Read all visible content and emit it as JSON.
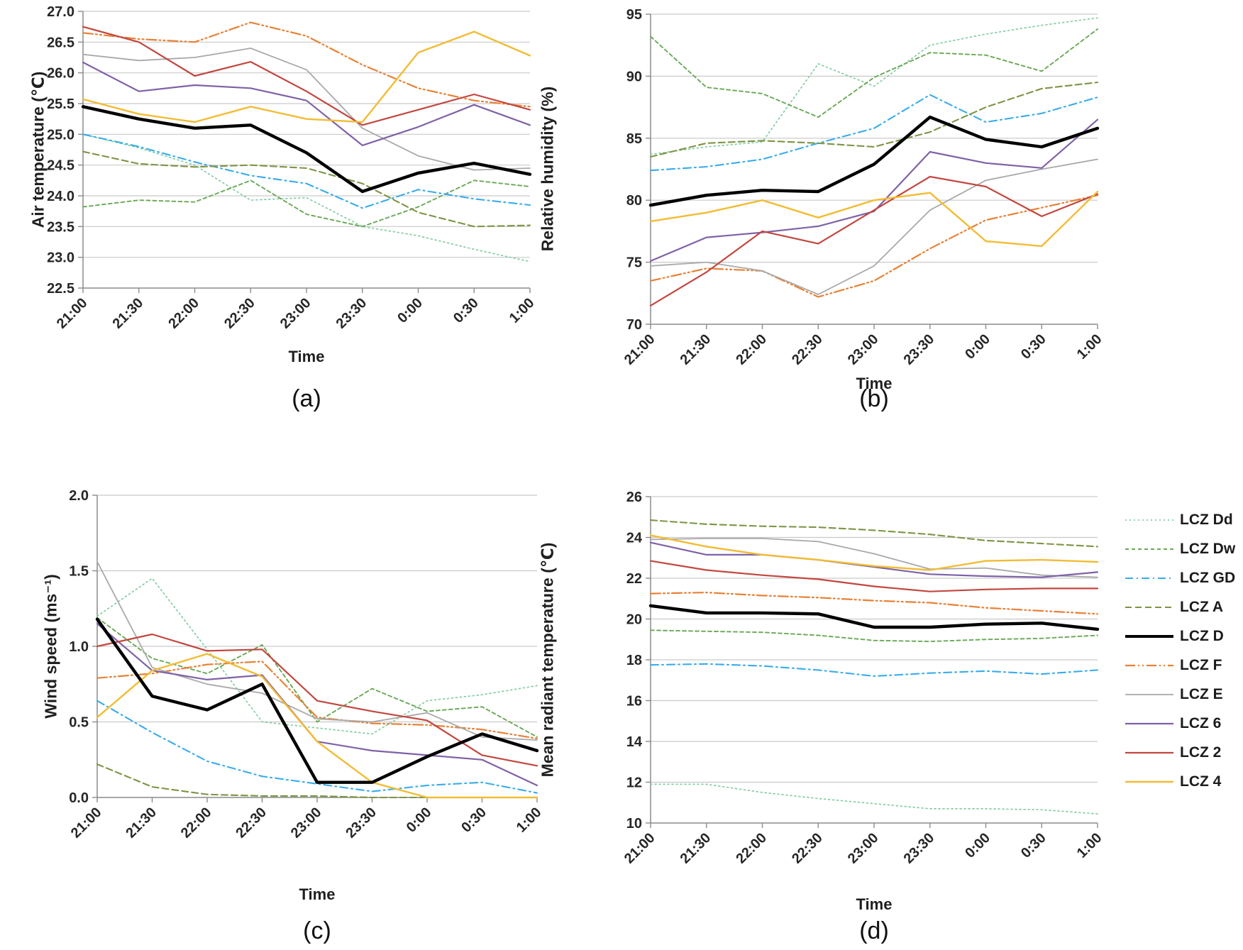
{
  "figure_type": "four-panel line chart figure, Local Climate Zone (LCZ) night measurements",
  "legend": {
    "position": "right of panel d",
    "entries": [
      {
        "key": "Dd",
        "label": "LCZ Dd",
        "color": "#84cda4",
        "dash": "2 4",
        "width": 1.7
      },
      {
        "key": "Dw",
        "label": "LCZ Dw",
        "color": "#69a855",
        "dash": "5 4",
        "width": 1.9
      },
      {
        "key": "GD",
        "label": "LCZ GD",
        "color": "#38acec",
        "dash": "11 5 2 5",
        "width": 2.1
      },
      {
        "key": "A",
        "label": "LCZ A",
        "color": "#7e9444",
        "dash": "9 5",
        "width": 2.1
      },
      {
        "key": "D",
        "label": "LCZ D",
        "color": "#000000",
        "dash": "",
        "width": 4.4
      },
      {
        "key": "F",
        "label": "LCZ F",
        "color": "#e88135",
        "dash": "14 4 2 4 2 4",
        "width": 2.2
      },
      {
        "key": "E",
        "label": "LCZ E",
        "color": "#a9a9a9",
        "dash": "",
        "width": 1.8
      },
      {
        "key": "6",
        "label": "LCZ 6",
        "color": "#7e62a7",
        "dash": "",
        "width": 2.2
      },
      {
        "key": "2",
        "label": "LCZ 2",
        "color": "#c2473f",
        "dash": "",
        "width": 2.2
      },
      {
        "key": "4",
        "label": "LCZ 4",
        "color": "#f2bc33",
        "dash": "",
        "width": 2.4
      }
    ]
  },
  "chart_data": [
    {
      "id": "a",
      "type": "line",
      "title": "(a)",
      "xlabel": "Time",
      "ylabel": "Air temperature (℃)",
      "ylim": [
        22.5,
        27.0
      ],
      "yticks": [
        27.0,
        26.5,
        26.0,
        25.5,
        25.0,
        24.5,
        24.0,
        23.5,
        23.0,
        22.5
      ],
      "ytick_labels": [
        "27.0",
        "26.5",
        "26.0",
        "25.5",
        "25.0",
        "24.5",
        "24.0",
        "23.5",
        "23.0",
        "22.5"
      ],
      "grid": "horizontal",
      "legend_position": "none",
      "x": [
        "21:00",
        "21:30",
        "22:00",
        "22:30",
        "23:00",
        "23:30",
        "0:00",
        "0:30",
        "1:00"
      ],
      "series": [
        {
          "key": "Dd",
          "name": "LCZ Dd",
          "values": [
            25.0,
            24.78,
            24.5,
            23.93,
            23.97,
            23.5,
            23.35,
            23.13,
            22.93
          ]
        },
        {
          "key": "Dw",
          "name": "LCZ Dw",
          "values": [
            23.82,
            23.93,
            23.9,
            24.25,
            23.7,
            23.5,
            23.82,
            24.25,
            24.15
          ]
        },
        {
          "key": "GD",
          "name": "LCZ GD",
          "values": [
            25.0,
            24.8,
            24.55,
            24.33,
            24.2,
            23.8,
            24.1,
            23.95,
            23.85
          ]
        },
        {
          "key": "A",
          "name": "LCZ A",
          "values": [
            24.72,
            24.52,
            24.47,
            24.5,
            24.45,
            24.2,
            23.73,
            23.5,
            23.52
          ]
        },
        {
          "key": "D",
          "name": "LCZ D",
          "values": [
            25.45,
            25.25,
            25.1,
            25.15,
            24.7,
            24.07,
            24.37,
            24.53,
            24.35
          ]
        },
        {
          "key": "F",
          "name": "LCZ F",
          "values": [
            26.65,
            26.55,
            26.5,
            26.82,
            26.6,
            26.13,
            25.75,
            25.55,
            25.45
          ]
        },
        {
          "key": "E",
          "name": "LCZ E",
          "values": [
            26.3,
            26.2,
            26.25,
            26.4,
            26.05,
            25.1,
            24.65,
            24.42,
            24.45
          ]
        },
        {
          "key": "6",
          "name": "LCZ 6",
          "values": [
            26.17,
            25.7,
            25.8,
            25.75,
            25.55,
            24.82,
            25.12,
            25.48,
            25.15
          ]
        },
        {
          "key": "2",
          "name": "LCZ 2",
          "values": [
            26.75,
            26.5,
            25.95,
            26.18,
            25.7,
            25.15,
            25.4,
            25.65,
            25.4
          ]
        },
        {
          "key": "4",
          "name": "LCZ 4",
          "values": [
            25.57,
            25.33,
            25.2,
            25.45,
            25.25,
            25.2,
            26.33,
            26.67,
            26.28
          ]
        }
      ]
    },
    {
      "id": "b",
      "type": "line",
      "title": "(b)",
      "xlabel": "Time",
      "ylabel": "Relative humidity (%)",
      "ylim": [
        70,
        95
      ],
      "yticks": [
        95,
        90,
        85,
        80,
        75,
        70
      ],
      "ytick_labels": [
        "95",
        "90",
        "85",
        "80",
        "75",
        "70"
      ],
      "grid": "horizontal",
      "legend_position": "none",
      "x": [
        "21:00",
        "21:30",
        "22:00",
        "22:30",
        "23:00",
        "23:30",
        "0:00",
        "0:30",
        "1:00"
      ],
      "series": [
        {
          "key": "Dd",
          "name": "LCZ Dd",
          "values": [
            83.7,
            84.3,
            84.7,
            91.0,
            89.2,
            92.5,
            93.4,
            94.1,
            94.7
          ]
        },
        {
          "key": "Dw",
          "name": "LCZ Dw",
          "values": [
            93.2,
            89.1,
            88.6,
            86.7,
            89.9,
            91.9,
            91.7,
            90.4,
            93.8
          ]
        },
        {
          "key": "GD",
          "name": "LCZ GD",
          "values": [
            82.4,
            82.7,
            83.3,
            84.6,
            85.8,
            88.5,
            86.3,
            87.0,
            88.3
          ]
        },
        {
          "key": "A",
          "name": "LCZ A",
          "values": [
            83.5,
            84.6,
            84.8,
            84.6,
            84.3,
            85.5,
            87.5,
            89.0,
            89.5
          ]
        },
        {
          "key": "D",
          "name": "LCZ D",
          "values": [
            79.6,
            80.4,
            80.8,
            80.7,
            82.9,
            86.7,
            84.9,
            84.3,
            85.8
          ]
        },
        {
          "key": "F",
          "name": "LCZ F",
          "values": [
            73.5,
            74.5,
            74.3,
            72.2,
            73.5,
            76.1,
            78.4,
            79.4,
            80.4
          ]
        },
        {
          "key": "E",
          "name": "LCZ E",
          "values": [
            74.7,
            75.0,
            74.3,
            72.4,
            74.7,
            79.2,
            81.6,
            82.5,
            83.3
          ]
        },
        {
          "key": "6",
          "name": "LCZ 6",
          "values": [
            75.1,
            77.0,
            77.4,
            77.9,
            79.1,
            83.9,
            83.0,
            82.6,
            86.5
          ]
        },
        {
          "key": "2",
          "name": "LCZ 2",
          "values": [
            71.5,
            74.2,
            77.5,
            76.5,
            79.2,
            81.9,
            81.1,
            78.7,
            80.5
          ]
        },
        {
          "key": "4",
          "name": "LCZ 4",
          "values": [
            78.3,
            79.0,
            80.0,
            78.6,
            80.0,
            80.6,
            76.7,
            76.3,
            80.7
          ]
        }
      ]
    },
    {
      "id": "c",
      "type": "line",
      "title": "(c)",
      "xlabel": "Time",
      "ylabel": "Wind speed (ms⁻¹)",
      "ylim": [
        0.0,
        2.0
      ],
      "yticks": [
        2.0,
        1.5,
        1.0,
        0.5,
        0.0
      ],
      "ytick_labels": [
        "2.0",
        "1.5",
        "1.0",
        "0.5",
        "0.0"
      ],
      "grid": "horizontal",
      "legend_position": "none",
      "x": [
        "21:00",
        "21:30",
        "22:00",
        "22:30",
        "23:00",
        "23:30",
        "0:00",
        "0:30",
        "1:00"
      ],
      "series": [
        {
          "key": "Dd",
          "name": "LCZ Dd",
          "values": [
            1.2,
            1.45,
            0.98,
            0.5,
            0.46,
            0.42,
            0.64,
            0.68,
            0.74
          ]
        },
        {
          "key": "Dw",
          "name": "LCZ Dw",
          "values": [
            1.19,
            0.92,
            0.82,
            1.01,
            0.5,
            0.72,
            0.57,
            0.6,
            0.4
          ]
        },
        {
          "key": "GD",
          "name": "LCZ GD",
          "values": [
            0.64,
            0.43,
            0.24,
            0.14,
            0.09,
            0.04,
            0.08,
            0.1,
            0.03
          ]
        },
        {
          "key": "A",
          "name": "LCZ A",
          "values": [
            0.22,
            0.07,
            0.02,
            0.01,
            0.01,
            0.0,
            0.0,
            0.0,
            0.0
          ]
        },
        {
          "key": "D",
          "name": "LCZ D",
          "values": [
            1.18,
            0.67,
            0.58,
            0.75,
            0.1,
            0.1,
            0.27,
            0.42,
            0.31
          ]
        },
        {
          "key": "F",
          "name": "LCZ F",
          "values": [
            0.79,
            0.82,
            0.88,
            0.9,
            0.53,
            0.49,
            0.48,
            0.45,
            0.39
          ]
        },
        {
          "key": "E",
          "name": "LCZ E",
          "values": [
            1.56,
            0.86,
            0.75,
            0.69,
            0.52,
            0.5,
            0.56,
            0.4,
            0.38
          ]
        },
        {
          "key": "6",
          "name": "LCZ 6",
          "values": [
            1.15,
            0.84,
            0.78,
            0.81,
            0.37,
            0.31,
            0.28,
            0.25,
            0.08
          ]
        },
        {
          "key": "2",
          "name": "LCZ 2",
          "values": [
            1.0,
            1.08,
            0.97,
            0.98,
            0.64,
            0.57,
            0.51,
            0.28,
            0.21
          ]
        },
        {
          "key": "4",
          "name": "LCZ 4",
          "values": [
            0.53,
            0.84,
            0.95,
            0.8,
            0.37,
            0.1,
            0.0,
            0.0,
            0.0
          ]
        }
      ]
    },
    {
      "id": "d",
      "type": "line",
      "title": "(d)",
      "xlabel": "Time",
      "ylabel": "Mean radiant temperature (℃)",
      "ylim": [
        10,
        26
      ],
      "yticks": [
        26,
        24,
        22,
        20,
        18,
        16,
        14,
        12,
        10
      ],
      "ytick_labels": [
        "26",
        "24",
        "22",
        "20",
        "18",
        "16",
        "14",
        "12",
        "10"
      ],
      "grid": "horizontal",
      "legend_position": "right",
      "x": [
        "21:00",
        "21:30",
        "22:00",
        "22:30",
        "23:00",
        "23:30",
        "0:00",
        "0:30",
        "1:00"
      ],
      "series": [
        {
          "key": "Dd",
          "name": "LCZ Dd",
          "values": [
            11.9,
            11.9,
            11.5,
            11.2,
            10.95,
            10.7,
            10.7,
            10.65,
            10.45
          ]
        },
        {
          "key": "Dw",
          "name": "LCZ Dw",
          "values": [
            19.45,
            19.4,
            19.35,
            19.2,
            18.95,
            18.9,
            19.0,
            19.05,
            19.2
          ]
        },
        {
          "key": "GD",
          "name": "LCZ GD",
          "values": [
            17.75,
            17.8,
            17.7,
            17.5,
            17.2,
            17.35,
            17.45,
            17.3,
            17.5
          ]
        },
        {
          "key": "A",
          "name": "LCZ A",
          "values": [
            24.85,
            24.65,
            24.55,
            24.5,
            24.35,
            24.15,
            23.85,
            23.7,
            23.55
          ]
        },
        {
          "key": "D",
          "name": "LCZ D",
          "values": [
            20.65,
            20.3,
            20.3,
            20.25,
            19.6,
            19.6,
            19.75,
            19.8,
            19.5
          ]
        },
        {
          "key": "F",
          "name": "LCZ F",
          "values": [
            21.25,
            21.3,
            21.15,
            21.05,
            20.9,
            20.8,
            20.55,
            20.4,
            20.25
          ]
        },
        {
          "key": "E",
          "name": "LCZ E",
          "values": [
            23.9,
            23.95,
            23.95,
            23.8,
            23.2,
            22.45,
            22.5,
            22.15,
            22.05
          ]
        },
        {
          "key": "6",
          "name": "LCZ 6",
          "values": [
            23.75,
            23.15,
            23.15,
            22.9,
            22.55,
            22.2,
            22.1,
            22.05,
            22.3
          ]
        },
        {
          "key": "2",
          "name": "LCZ 2",
          "values": [
            22.85,
            22.4,
            22.15,
            21.95,
            21.6,
            21.35,
            21.45,
            21.5,
            21.5
          ]
        },
        {
          "key": "4",
          "name": "LCZ 4",
          "values": [
            24.1,
            23.55,
            23.15,
            22.9,
            22.6,
            22.4,
            22.85,
            22.9,
            22.8
          ]
        }
      ]
    }
  ]
}
